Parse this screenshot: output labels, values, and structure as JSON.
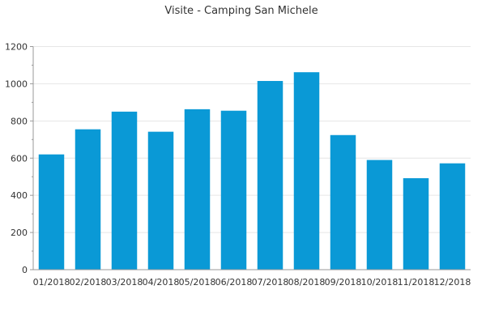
{
  "chart_data": {
    "type": "bar",
    "title": "Visite - Camping San Michele",
    "categories": [
      "01/2018",
      "02/2018",
      "03/2018",
      "04/2018",
      "05/2018",
      "06/2018",
      "07/2018",
      "08/2018",
      "09/2018",
      "10/2018",
      "11/2018",
      "12/2018"
    ],
    "values": [
      620,
      755,
      850,
      742,
      863,
      855,
      1015,
      1062,
      724,
      590,
      492,
      572
    ],
    "ylim": [
      0,
      1200
    ],
    "yticks": [
      0,
      200,
      400,
      600,
      800,
      1000,
      1200
    ],
    "grid": true,
    "legend": "none",
    "bar_color": "#0a99d6"
  }
}
